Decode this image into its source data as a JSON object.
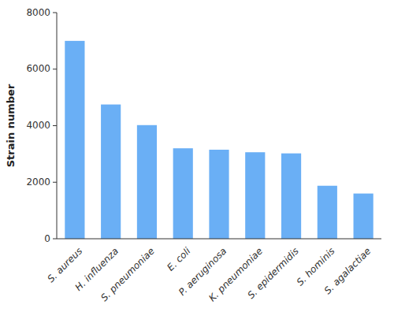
{
  "chart_data": {
    "type": "bar",
    "ylabel": "Strain number",
    "categories": [
      "S. aureus",
      "H. influenza",
      "S. pneumoniae",
      "E. coli",
      "P. aeruginosa",
      "K. pneumoniae",
      "S. epidermidis",
      "S. hominis",
      "S. agalactiae"
    ],
    "values": [
      7000,
      4750,
      4020,
      3200,
      3150,
      3060,
      3020,
      1875,
      1600
    ],
    "color": "#6aaff5",
    "ylim": [
      0,
      8000
    ],
    "yticks": [
      0,
      2000,
      4000,
      6000,
      8000
    ],
    "grid": false
  }
}
